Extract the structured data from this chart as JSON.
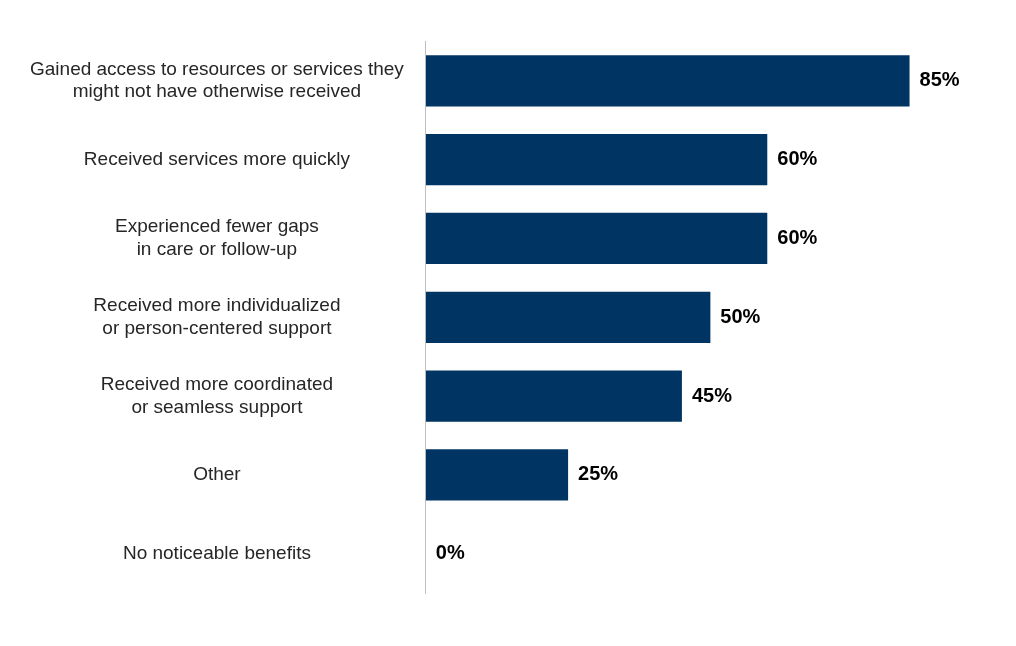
{
  "chart_data": {
    "type": "bar",
    "orientation": "horizontal",
    "categories": [
      "Gained access to resources or services they\nmight not have otherwise received",
      "Received services more quickly",
      "Experienced fewer gaps\nin care or follow-up",
      "Received more individualized\nor person-centered support",
      "Received more coordinated\nor seamless support",
      "Other",
      "No noticeable benefits"
    ],
    "values": [
      85,
      60,
      60,
      50,
      45,
      25,
      0
    ],
    "value_labels": [
      "85%",
      "60%",
      "60%",
      "50%",
      "45%",
      "25%",
      "0%"
    ],
    "color": "#003462",
    "tick_labels": "y",
    "grid": false,
    "legend": false
  }
}
